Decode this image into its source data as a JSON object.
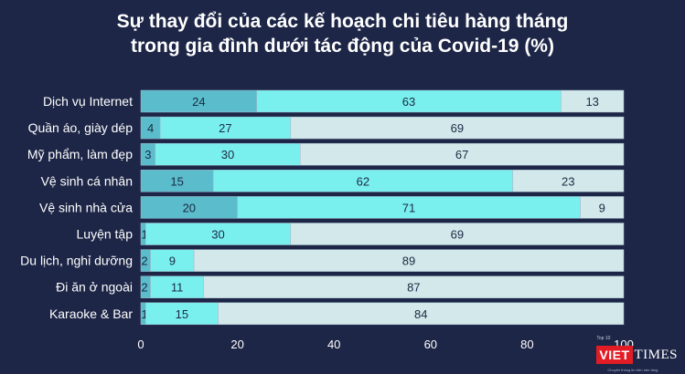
{
  "title_line1": "Sự thay đổi của các kế hoạch chi tiêu hàng tháng",
  "title_line2": "trong gia đình dưới tác động của Covid-19 (%)",
  "logo": {
    "tag": "Top 10",
    "brand_red": "VIET",
    "brand_white": "TIMES",
    "sub": "Chuyên thông tin trên nền tảng"
  },
  "colors": {
    "background": "#1d2647",
    "series1": "#5bbccb",
    "series2": "#7af0ee",
    "series3": "#d2e8ea"
  },
  "chart_data": {
    "type": "bar",
    "orientation": "horizontal",
    "stacked": true,
    "categories": [
      "Dịch vụ Internet",
      "Quần áo, giày dép",
      "Mỹ phẩm, làm đẹp",
      "Vệ sinh cá nhân",
      "Vệ sinh nhà cửa",
      "Luyện tập",
      "Du lịch, nghỉ dưỡng",
      "Đi ăn ở ngoài",
      "Karaoke & Bar"
    ],
    "series": [
      {
        "values": [
          24,
          4,
          3,
          15,
          20,
          1,
          2,
          2,
          1
        ]
      },
      {
        "values": [
          63,
          27,
          30,
          62,
          71,
          30,
          9,
          11,
          15
        ]
      },
      {
        "values": [
          13,
          69,
          67,
          23,
          9,
          69,
          89,
          87,
          84
        ]
      }
    ],
    "xlim": [
      0,
      100
    ],
    "xticks": [
      0,
      20,
      40,
      60,
      80,
      100
    ],
    "grid": false
  }
}
